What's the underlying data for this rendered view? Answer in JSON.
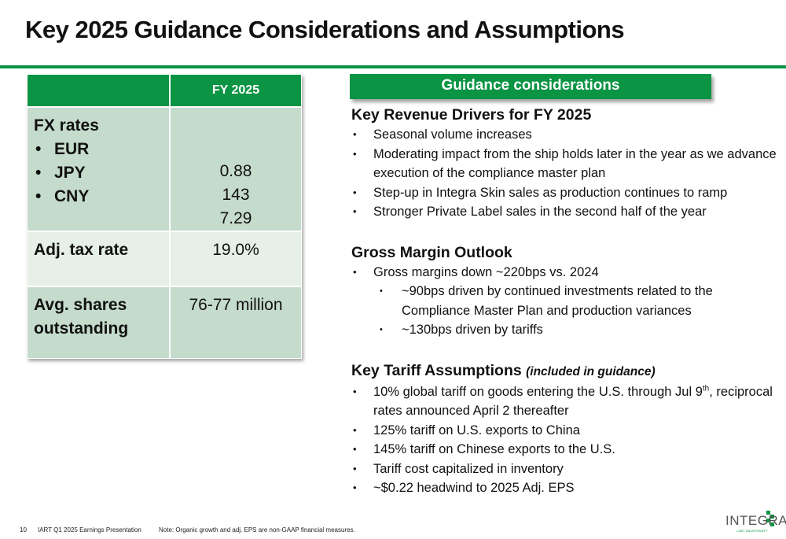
{
  "title": "Key 2025 Guidance Considerations and Assumptions",
  "table": {
    "header": "FY 2025",
    "fx_label": "FX rates",
    "fx_items": [
      {
        "label": "EUR",
        "value": "0.88"
      },
      {
        "label": "JPY",
        "value": "143"
      },
      {
        "label": "CNY",
        "value": "7.29"
      }
    ],
    "tax_label": "Adj. tax rate",
    "tax_value": "19.0%",
    "shares_label_1": "Avg. shares",
    "shares_label_2": "outstanding",
    "shares_value": "76-77 million"
  },
  "banner": "Guidance considerations",
  "revenue": {
    "heading": "Key Revenue Drivers for FY 2025",
    "items": [
      "Seasonal volume increases",
      "Moderating impact from the ship holds later in the year as we advance execution of the compliance master plan",
      "Step-up in Integra Skin sales as production continues to ramp",
      "Stronger Private Label sales in the second half of the year"
    ]
  },
  "margin": {
    "heading": "Gross Margin Outlook",
    "item": "Gross margins down ~220bps vs. 2024",
    "subitems": [
      "~90bps driven by continued investments related to the Compliance Master Plan and production variances",
      "~130bps driven by tariffs"
    ]
  },
  "tariff": {
    "heading": "Key Tariff Assumptions",
    "heading_note": "(included in guidance)",
    "item1_a": "10% global tariff on goods entering the U.S. through Jul 9",
    "item1_sup": "th",
    "item1_b": ", reciprocal rates announced April 2 thereafter",
    "items": [
      "125% tariff on U.S. exports to China",
      "145% tariff on Chinese exports to the U.S.",
      "Tariff cost capitalized in inventory",
      "~$0.22 headwind to 2025 Adj. EPS"
    ]
  },
  "footer": {
    "page": "10",
    "presentation": "IART Q1 2025 Earnings Presentation",
    "note": "Note: Organic growth and adj. EPS are non-GAAP financial measures.",
    "logo": "INTEGRA",
    "logo_sub": "LIMIT UNCERTAINTY"
  },
  "colors": {
    "accent": "#0b9444",
    "row_dark": "#c5dbcc",
    "row_light": "#e6efe8"
  }
}
